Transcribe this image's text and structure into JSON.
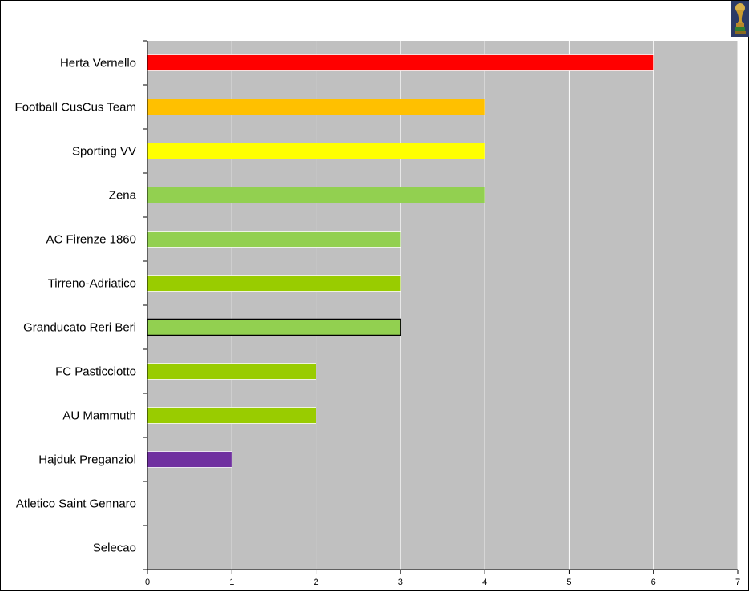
{
  "chart_data": {
    "type": "bar",
    "orientation": "horizontal",
    "categories": [
      "Herta Vernello",
      "Football CusCus Team",
      "Sporting VV",
      "Zena",
      "AC Firenze 1860",
      "Tirreno-Adriatico",
      "Granducato Reri Beri",
      "FC Pasticciotto",
      "AU Mammuth",
      "Hajduk Preganziol",
      "Atletico Saint Gennaro",
      "Selecao"
    ],
    "values": [
      6,
      4,
      4,
      4,
      3,
      3,
      3,
      2,
      2,
      1,
      0,
      0
    ],
    "bar_colors": [
      "#ff0000",
      "#ffc000",
      "#ffff00",
      "#92d050",
      "#92d050",
      "#99cc00",
      "#92d050",
      "#99cc00",
      "#99cc00",
      "#7030a0",
      "#92d050",
      "#92d050"
    ],
    "highlighted": "Granducato Reri Beri",
    "xlim": [
      0,
      7
    ],
    "xticks": [
      0,
      1,
      2,
      3,
      4,
      5,
      6,
      7
    ],
    "title": "",
    "xlabel": "",
    "ylabel": "",
    "grid": true,
    "plot_background": "#c0c0c0",
    "grid_color": "#ffffff"
  },
  "icons": {
    "corner_logo": "trophy-icon"
  }
}
